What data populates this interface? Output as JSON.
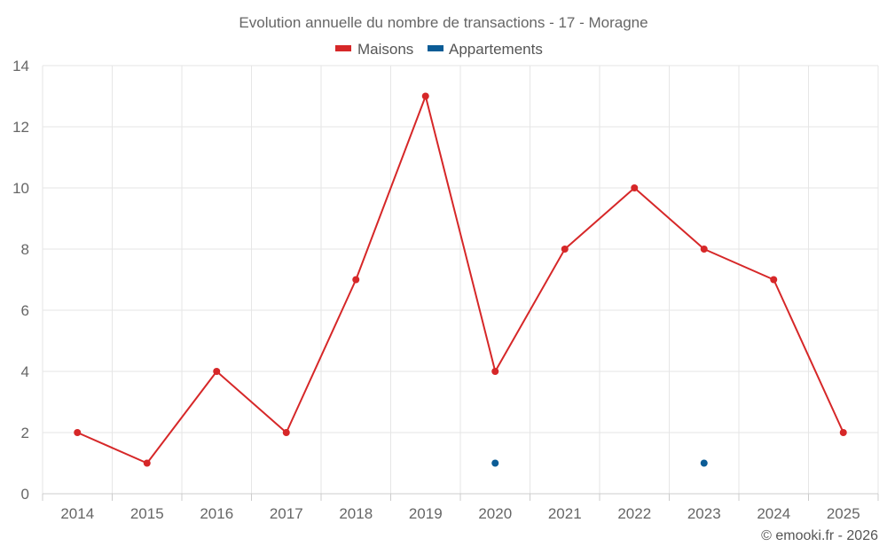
{
  "chart_data": {
    "type": "line",
    "title": "Evolution annuelle du nombre de transactions - 17 - Moragne",
    "categories": [
      "2014",
      "2015",
      "2016",
      "2017",
      "2018",
      "2019",
      "2020",
      "2021",
      "2022",
      "2023",
      "2024",
      "2025"
    ],
    "series": [
      {
        "name": "Maisons",
        "color": "#d62728",
        "values": [
          2,
          1,
          4,
          2,
          7,
          13,
          4,
          8,
          10,
          8,
          7,
          2
        ]
      },
      {
        "name": "Appartements",
        "color": "#0b5c96",
        "values": [
          null,
          null,
          null,
          null,
          null,
          null,
          1,
          null,
          null,
          1,
          null,
          null
        ]
      }
    ],
    "ylim": [
      0,
      14
    ],
    "yticks": [
      0,
      2,
      4,
      6,
      8,
      10,
      12,
      14
    ],
    "xlabel": "",
    "ylabel": "",
    "grid": true,
    "legend_position": "top-center"
  },
  "footer": {
    "credit": "© emooki.fr - 2026"
  },
  "colors": {
    "text": "#666666",
    "grid": "#e6e6e6",
    "axis": "#cccccc"
  }
}
